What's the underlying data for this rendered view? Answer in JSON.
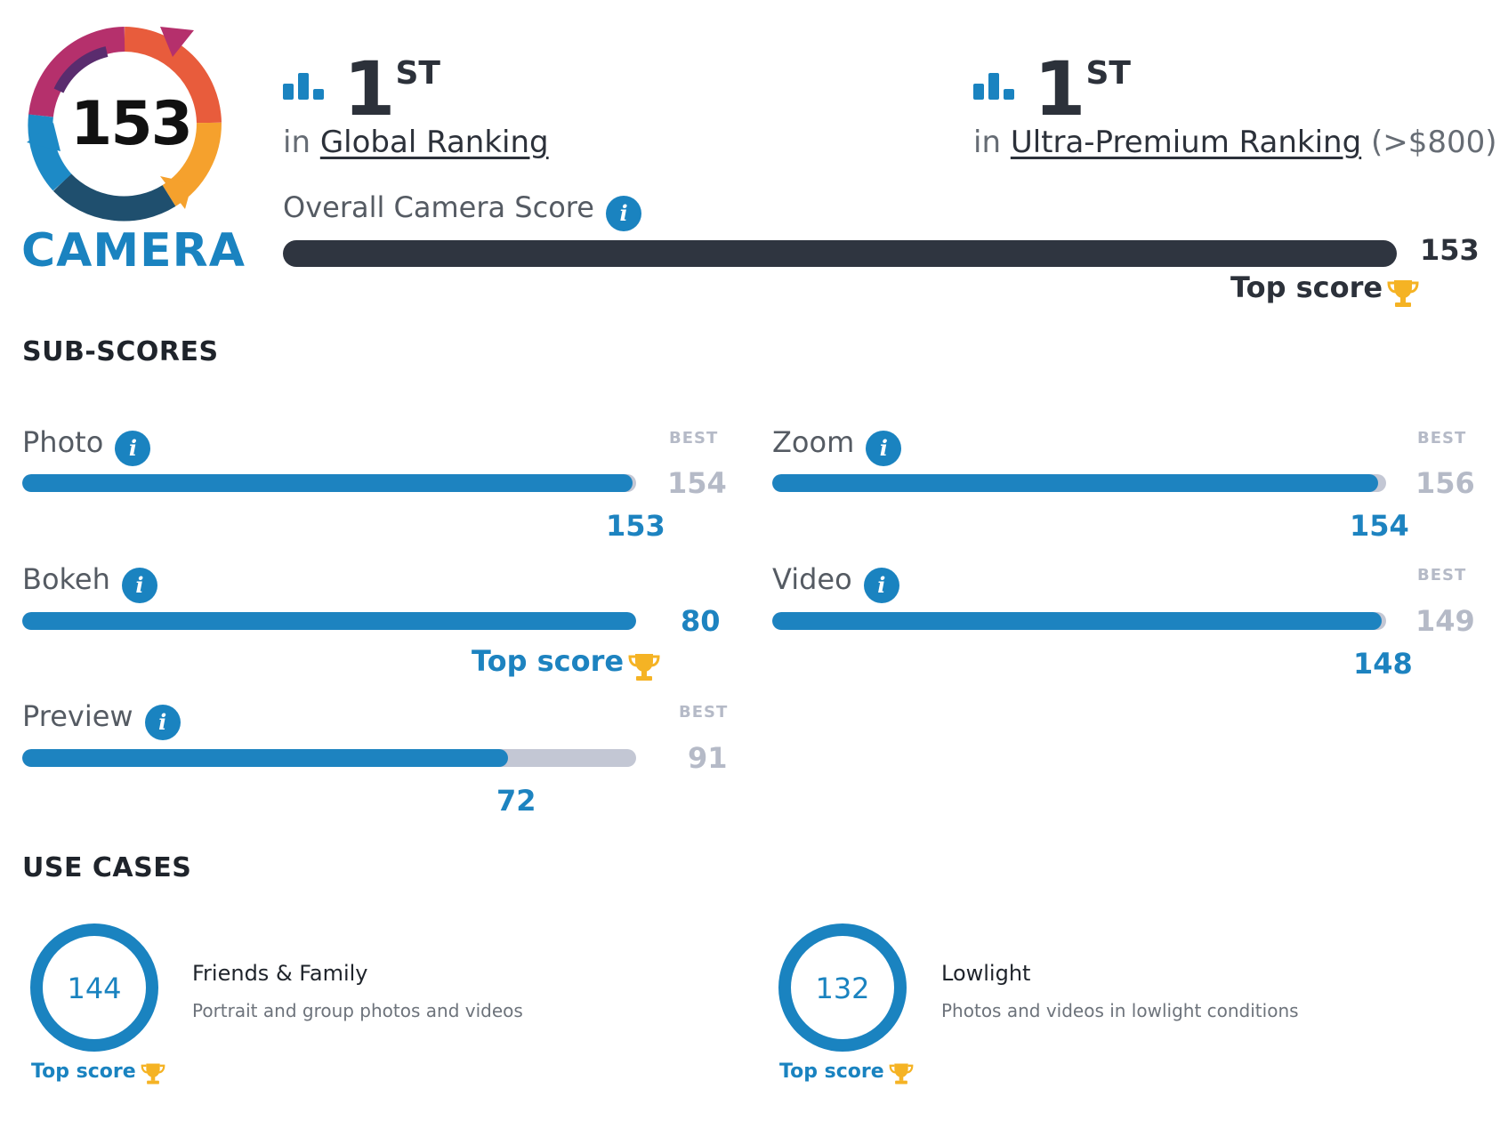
{
  "badge": {
    "score": "153",
    "label": "CAMERA"
  },
  "rankings": [
    {
      "rank": "1",
      "suffix": "ST",
      "prefix": "in",
      "link": "Global Ranking",
      "extra": ""
    },
    {
      "rank": "1",
      "suffix": "ST",
      "prefix": "in",
      "link": "Ultra-Premium Ranking",
      "extra": "(>$800)"
    }
  ],
  "overall": {
    "label": "Overall Camera Score",
    "value": "153",
    "top_score_label": "Top score",
    "fill_fraction": 1.0
  },
  "sub_scores": {
    "title": "SUB-SCORES",
    "items": [
      {
        "label": "Photo",
        "best_label": "BEST",
        "best": "154",
        "value": "153",
        "fraction": 0.9935
      },
      {
        "label": "Zoom",
        "best_label": "BEST",
        "best": "156",
        "value": "154",
        "fraction": 0.987
      },
      {
        "label": "Bokeh",
        "best_label": "",
        "best": "80",
        "value": "",
        "top_score_label": "Top score",
        "fraction": 1.0
      },
      {
        "label": "Video",
        "best_label": "BEST",
        "best": "149",
        "value": "148",
        "fraction": 0.993
      },
      {
        "label": "Preview",
        "best_label": "BEST",
        "best": "91",
        "value": "72",
        "fraction": 0.791
      }
    ]
  },
  "use_cases": {
    "title": "USE CASES",
    "items": [
      {
        "score": "144",
        "title": "Friends & Family",
        "desc": "Portrait and group photos and videos",
        "top_score_label": "Top score"
      },
      {
        "score": "132",
        "title": "Lowlight",
        "desc": "Photos and videos in lowlight conditions",
        "top_score_label": "Top score"
      }
    ]
  },
  "icons": {
    "info": "i",
    "trophy": "trophy-icon",
    "ranking": "bar-chart-icon"
  },
  "colors": {
    "accent": "#1a83c0",
    "dark": "#2f3540",
    "track": "#c3c7d4",
    "trophy": "#f5b324"
  }
}
